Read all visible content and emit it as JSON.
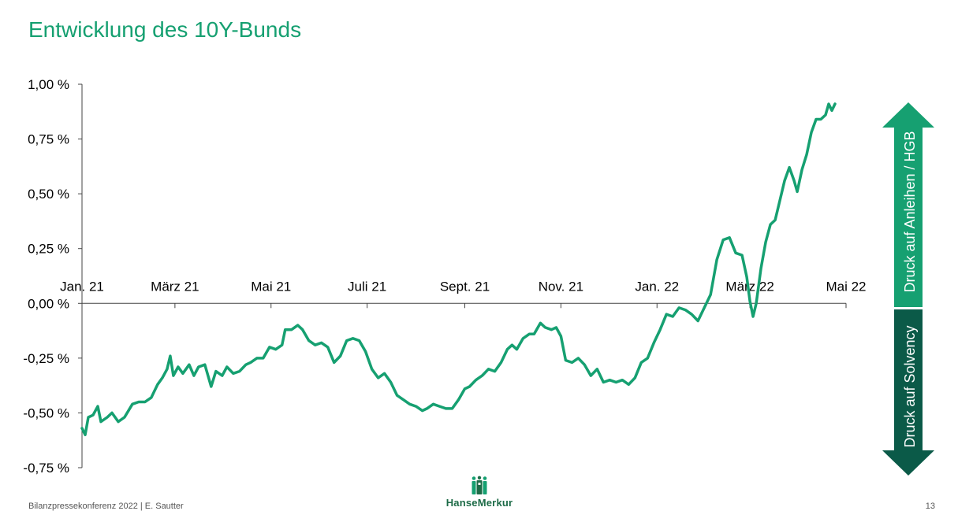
{
  "slide": {
    "title": "Entwicklung des 10Y-Bunds",
    "footer": "Bilanzpressekonferenz 2022 | E. Sautter",
    "page_number": "13",
    "logo_text": "HanseMerkur"
  },
  "arrows": {
    "up_label": "Druck auf Anleihen / HGB",
    "down_label": "Druck auf Solvency",
    "up_color": "#16a071",
    "down_color": "#0b5a48"
  },
  "chart_data": {
    "type": "line",
    "title": "Entwicklung des 10Y-Bunds",
    "xlabel": "",
    "ylabel": "",
    "line_color": "#16a071",
    "ylim": [
      -0.75,
      1.0
    ],
    "xlim": [
      "2021-01-01",
      "2022-04-24"
    ],
    "grid": false,
    "y_ticks": [
      {
        "value": 1.0,
        "label": "1,00 %"
      },
      {
        "value": 0.75,
        "label": "0,75 %"
      },
      {
        "value": 0.5,
        "label": "0,50 %"
      },
      {
        "value": 0.25,
        "label": "0,25 %"
      },
      {
        "value": 0.0,
        "label": "0,00 %"
      },
      {
        "value": -0.25,
        "label": "-0,25 %"
      },
      {
        "value": -0.5,
        "label": "-0,50 %"
      },
      {
        "value": -0.75,
        "label": "-0,75 %"
      }
    ],
    "x_ticks": [
      {
        "date": "2021-01-01",
        "label": "Jan. 21"
      },
      {
        "date": "2021-03-01",
        "label": "März 21"
      },
      {
        "date": "2021-05-01",
        "label": "Mai 21"
      },
      {
        "date": "2021-07-01",
        "label": "Juli 21"
      },
      {
        "date": "2021-09-01",
        "label": "Sept. 21"
      },
      {
        "date": "2021-11-01",
        "label": "Nov. 21"
      },
      {
        "date": "2022-01-01",
        "label": "Jan. 22"
      },
      {
        "date": "2022-03-01",
        "label": "März 22"
      },
      {
        "date": "2022-05-01",
        "label": "Mai 22"
      }
    ],
    "series": [
      {
        "points": [
          [
            "2021-01-01",
            -0.57
          ],
          [
            "2021-01-03",
            -0.6
          ],
          [
            "2021-01-05",
            -0.52
          ],
          [
            "2021-01-08",
            -0.51
          ],
          [
            "2021-01-11",
            -0.47
          ],
          [
            "2021-01-13",
            -0.54
          ],
          [
            "2021-01-17",
            -0.52
          ],
          [
            "2021-01-20",
            -0.5
          ],
          [
            "2021-01-24",
            -0.54
          ],
          [
            "2021-01-28",
            -0.52
          ],
          [
            "2021-02-02",
            -0.46
          ],
          [
            "2021-02-06",
            -0.45
          ],
          [
            "2021-02-10",
            -0.45
          ],
          [
            "2021-02-14",
            -0.43
          ],
          [
            "2021-02-18",
            -0.37
          ],
          [
            "2021-02-21",
            -0.34
          ],
          [
            "2021-02-24",
            -0.3
          ],
          [
            "2021-02-26",
            -0.24
          ],
          [
            "2021-02-28",
            -0.33
          ],
          [
            "2021-03-03",
            -0.29
          ],
          [
            "2021-03-06",
            -0.32
          ],
          [
            "2021-03-10",
            -0.28
          ],
          [
            "2021-03-13",
            -0.33
          ],
          [
            "2021-03-16",
            -0.29
          ],
          [
            "2021-03-20",
            -0.28
          ],
          [
            "2021-03-24",
            -0.38
          ],
          [
            "2021-03-27",
            -0.31
          ],
          [
            "2021-03-31",
            -0.33
          ],
          [
            "2021-04-03",
            -0.29
          ],
          [
            "2021-04-07",
            -0.32
          ],
          [
            "2021-04-11",
            -0.31
          ],
          [
            "2021-04-15",
            -0.28
          ],
          [
            "2021-04-18",
            -0.27
          ],
          [
            "2021-04-22",
            -0.25
          ],
          [
            "2021-04-26",
            -0.25
          ],
          [
            "2021-04-30",
            -0.2
          ],
          [
            "2021-05-04",
            -0.21
          ],
          [
            "2021-05-08",
            -0.19
          ],
          [
            "2021-05-10",
            -0.12
          ],
          [
            "2021-05-14",
            -0.12
          ],
          [
            "2021-05-18",
            -0.1
          ],
          [
            "2021-05-21",
            -0.12
          ],
          [
            "2021-05-25",
            -0.17
          ],
          [
            "2021-05-29",
            -0.19
          ],
          [
            "2021-06-02",
            -0.18
          ],
          [
            "2021-06-06",
            -0.2
          ],
          [
            "2021-06-10",
            -0.27
          ],
          [
            "2021-06-14",
            -0.24
          ],
          [
            "2021-06-18",
            -0.17
          ],
          [
            "2021-06-22",
            -0.16
          ],
          [
            "2021-06-26",
            -0.17
          ],
          [
            "2021-06-30",
            -0.22
          ],
          [
            "2021-07-04",
            -0.3
          ],
          [
            "2021-07-08",
            -0.34
          ],
          [
            "2021-07-12",
            -0.32
          ],
          [
            "2021-07-16",
            -0.36
          ],
          [
            "2021-07-20",
            -0.42
          ],
          [
            "2021-07-24",
            -0.44
          ],
          [
            "2021-07-28",
            -0.46
          ],
          [
            "2021-08-01",
            -0.47
          ],
          [
            "2021-08-05",
            -0.49
          ],
          [
            "2021-08-08",
            -0.48
          ],
          [
            "2021-08-12",
            -0.46
          ],
          [
            "2021-08-16",
            -0.47
          ],
          [
            "2021-08-20",
            -0.48
          ],
          [
            "2021-08-24",
            -0.48
          ],
          [
            "2021-08-28",
            -0.44
          ],
          [
            "2021-09-01",
            -0.39
          ],
          [
            "2021-09-04",
            -0.38
          ],
          [
            "2021-09-08",
            -0.35
          ],
          [
            "2021-09-12",
            -0.33
          ],
          [
            "2021-09-16",
            -0.3
          ],
          [
            "2021-09-20",
            -0.31
          ],
          [
            "2021-09-24",
            -0.27
          ],
          [
            "2021-09-28",
            -0.21
          ],
          [
            "2021-10-01",
            -0.19
          ],
          [
            "2021-10-04",
            -0.21
          ],
          [
            "2021-10-08",
            -0.16
          ],
          [
            "2021-10-12",
            -0.14
          ],
          [
            "2021-10-15",
            -0.14
          ],
          [
            "2021-10-19",
            -0.09
          ],
          [
            "2021-10-22",
            -0.11
          ],
          [
            "2021-10-26",
            -0.12
          ],
          [
            "2021-10-29",
            -0.11
          ],
          [
            "2021-11-01",
            -0.15
          ],
          [
            "2021-11-04",
            -0.26
          ],
          [
            "2021-11-08",
            -0.27
          ],
          [
            "2021-11-12",
            -0.25
          ],
          [
            "2021-11-16",
            -0.28
          ],
          [
            "2021-11-20",
            -0.33
          ],
          [
            "2021-11-24",
            -0.3
          ],
          [
            "2021-11-28",
            -0.36
          ],
          [
            "2021-12-02",
            -0.35
          ],
          [
            "2021-12-06",
            -0.36
          ],
          [
            "2021-12-10",
            -0.35
          ],
          [
            "2021-12-14",
            -0.37
          ],
          [
            "2021-12-18",
            -0.34
          ],
          [
            "2021-12-22",
            -0.27
          ],
          [
            "2021-12-26",
            -0.25
          ],
          [
            "2021-12-30",
            -0.18
          ],
          [
            "2022-01-03",
            -0.12
          ],
          [
            "2022-01-07",
            -0.05
          ],
          [
            "2022-01-11",
            -0.06
          ],
          [
            "2022-01-15",
            -0.02
          ],
          [
            "2022-01-19",
            -0.03
          ],
          [
            "2022-01-23",
            -0.05
          ],
          [
            "2022-01-27",
            -0.08
          ],
          [
            "2022-01-31",
            -0.02
          ],
          [
            "2022-02-04",
            0.04
          ],
          [
            "2022-02-08",
            0.2
          ],
          [
            "2022-02-12",
            0.29
          ],
          [
            "2022-02-16",
            0.3
          ],
          [
            "2022-02-20",
            0.23
          ],
          [
            "2022-02-24",
            0.22
          ],
          [
            "2022-02-27",
            0.12
          ],
          [
            "2022-03-01",
            0.01
          ],
          [
            "2022-03-03",
            -0.06
          ],
          [
            "2022-03-05",
            0.0
          ],
          [
            "2022-03-08",
            0.16
          ],
          [
            "2022-03-11",
            0.28
          ],
          [
            "2022-03-14",
            0.36
          ],
          [
            "2022-03-17",
            0.38
          ],
          [
            "2022-03-20",
            0.47
          ],
          [
            "2022-03-23",
            0.56
          ],
          [
            "2022-03-26",
            0.62
          ],
          [
            "2022-03-29",
            0.56
          ],
          [
            "2022-03-31",
            0.51
          ],
          [
            "2022-04-03",
            0.61
          ],
          [
            "2022-04-06",
            0.68
          ],
          [
            "2022-04-09",
            0.78
          ],
          [
            "2022-04-12",
            0.84
          ],
          [
            "2022-04-15",
            0.84
          ],
          [
            "2022-04-18",
            0.86
          ],
          [
            "2022-04-20",
            0.91
          ],
          [
            "2022-04-22",
            0.88
          ],
          [
            "2022-04-24",
            0.91
          ]
        ]
      }
    ]
  }
}
